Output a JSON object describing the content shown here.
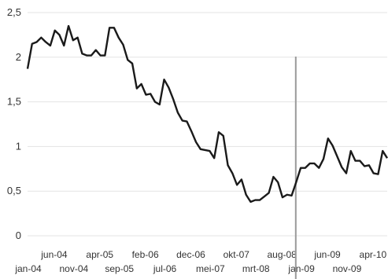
{
  "chart_data": {
    "type": "line",
    "title": "",
    "xlabel": "",
    "ylabel": "",
    "ylim": [
      0,
      2.5
    ],
    "yticks": [
      "0",
      "0,5",
      "1",
      "1,5",
      "2",
      "2,5"
    ],
    "grid": true,
    "x_tick_labels_upper": [
      "jun-04",
      "apr-05",
      "feb-06",
      "dec-06",
      "okt-07",
      "aug-08",
      "jun-09",
      "apr-10"
    ],
    "x_tick_labels_lower": [
      "jan-04",
      "nov-04",
      "sep-05",
      "jul-06",
      "mei-07",
      "mrt-08",
      "jan-09",
      "nov-09"
    ],
    "marker_line": {
      "x_index": 59
    },
    "colors": {
      "line": "#1a1a1a",
      "grid": "#e3e3e3",
      "marker": "#9a9a9a"
    },
    "series": [
      {
        "values": [
          1.87,
          2.15,
          2.17,
          2.22,
          2.17,
          2.13,
          2.3,
          2.25,
          2.13,
          2.35,
          2.19,
          2.22,
          2.04,
          2.02,
          2.02,
          2.08,
          2.02,
          2.02,
          2.33,
          2.33,
          2.22,
          2.14,
          1.97,
          1.93,
          1.65,
          1.7,
          1.58,
          1.59,
          1.5,
          1.47,
          1.75,
          1.66,
          1.53,
          1.38,
          1.29,
          1.28,
          1.17,
          1.05,
          0.97,
          0.96,
          0.95,
          0.87,
          1.16,
          1.12,
          0.79,
          0.7,
          0.57,
          0.63,
          0.46,
          0.38,
          0.4,
          0.4,
          0.44,
          0.48,
          0.66,
          0.6,
          0.43,
          0.46,
          0.45,
          0.6,
          0.76,
          0.76,
          0.81,
          0.81,
          0.76,
          0.86,
          1.09,
          1.01,
          0.89,
          0.77,
          0.7,
          0.95,
          0.84,
          0.84,
          0.78,
          0.79,
          0.7,
          0.69,
          0.95,
          0.87
        ]
      }
    ]
  }
}
